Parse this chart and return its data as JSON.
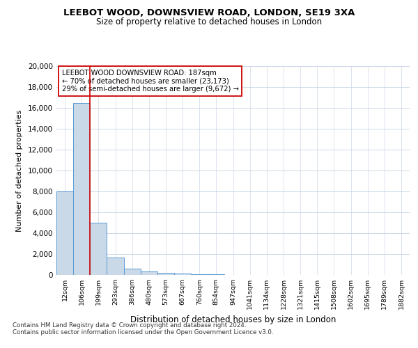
{
  "title1": "LEEBOT WOOD, DOWNSVIEW ROAD, LONDON, SE19 3XA",
  "title2": "Size of property relative to detached houses in London",
  "xlabel": "Distribution of detached houses by size in London",
  "ylabel": "Number of detached properties",
  "categories": [
    "12sqm",
    "106sqm",
    "199sqm",
    "293sqm",
    "386sqm",
    "480sqm",
    "573sqm",
    "667sqm",
    "760sqm",
    "854sqm",
    "947sqm",
    "1041sqm",
    "1134sqm",
    "1228sqm",
    "1321sqm",
    "1415sqm",
    "1508sqm",
    "1602sqm",
    "1695sqm",
    "1789sqm",
    "1882sqm"
  ],
  "values": [
    8000,
    16500,
    5000,
    1700,
    600,
    350,
    200,
    150,
    100,
    50,
    0,
    0,
    0,
    0,
    0,
    0,
    0,
    0,
    0,
    0,
    0
  ],
  "bar_color": "#c9d9e8",
  "bar_edge_color": "#5b9bd5",
  "marker_line_color": "#cc0000",
  "annotation_line1": "LEEBOT WOOD DOWNSVIEW ROAD: 187sqm",
  "annotation_line2": "← 70% of detached houses are smaller (23,173)",
  "annotation_line3": "29% of semi-detached houses are larger (9,672) →",
  "footer1": "Contains HM Land Registry data © Crown copyright and database right 2024.",
  "footer2": "Contains public sector information licensed under the Open Government Licence v3.0.",
  "ylim": [
    0,
    20000
  ],
  "yticks": [
    0,
    2000,
    4000,
    6000,
    8000,
    10000,
    12000,
    14000,
    16000,
    18000,
    20000
  ],
  "bg_color": "#ffffff",
  "grid_color": "#cdd8e8"
}
